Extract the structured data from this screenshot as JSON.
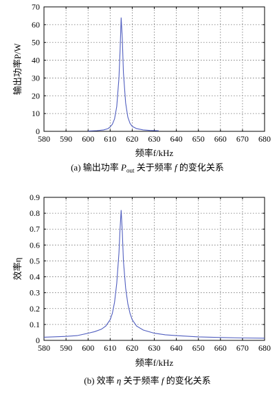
{
  "chart_data": [
    {
      "type": "line",
      "panel_label": "(a)",
      "caption": "输出功率 Pout 关于频率 f 的变化关系",
      "caption_parts": {
        "pre": "输出功率 ",
        "var": "P",
        "sub": "out",
        "post": " 关于频率 ",
        "var2": "f",
        "post2": " 的变化关系"
      },
      "xlabel": "频率f/kHz",
      "ylabel": "输出功率P/W",
      "xlim": [
        580,
        680
      ],
      "ylim": [
        0,
        70
      ],
      "xticks": [
        580,
        590,
        600,
        610,
        620,
        630,
        640,
        650,
        660,
        670,
        680
      ],
      "yticks": [
        0,
        10,
        20,
        30,
        40,
        50,
        60,
        70
      ],
      "grid": true,
      "color": "#4f5dbf",
      "series": [
        {
          "x": [
            600,
            604,
            607,
            609,
            610,
            611,
            612,
            613,
            614,
            614.5,
            615,
            615.5,
            616,
            617,
            618,
            619,
            620,
            622,
            625,
            628,
            632
          ],
          "y": [
            0.2,
            0.4,
            0.8,
            1.5,
            2.5,
            4,
            7,
            14,
            30,
            45,
            64,
            52,
            33,
            16,
            8,
            4.5,
            2.8,
            1.5,
            0.8,
            0.5,
            0.3
          ]
        }
      ]
    },
    {
      "type": "line",
      "panel_label": "(b)",
      "caption": "效率 η 关于频率 f 的变化关系",
      "caption_parts": {
        "pre": "效率 ",
        "var": "η",
        "sub": "",
        "post": " 关于频率 ",
        "var2": "f",
        "post2": " 的变化关系"
      },
      "xlabel": "频率f/kHz",
      "ylabel": "效率η",
      "xlim": [
        580,
        680
      ],
      "ylim": [
        0,
        0.9
      ],
      "xticks": [
        580,
        590,
        600,
        610,
        620,
        630,
        640,
        650,
        660,
        670,
        680
      ],
      "yticks": [
        0,
        0.1,
        0.2,
        0.3,
        0.4,
        0.5,
        0.6,
        0.7,
        0.8,
        0.9
      ],
      "grid": true,
      "color": "#4f5dbf",
      "series": [
        {
          "x": [
            580,
            590,
            595,
            600,
            603,
            606,
            608,
            610,
            611,
            612,
            613,
            614,
            614.5,
            615,
            615.5,
            616,
            617,
            618,
            619,
            620,
            622,
            625,
            630,
            635,
            640,
            650,
            660,
            670,
            680
          ],
          "y": [
            0.02,
            0.025,
            0.03,
            0.045,
            0.055,
            0.07,
            0.09,
            0.13,
            0.17,
            0.24,
            0.36,
            0.55,
            0.7,
            0.82,
            0.68,
            0.5,
            0.33,
            0.23,
            0.17,
            0.13,
            0.09,
            0.065,
            0.045,
            0.035,
            0.03,
            0.022,
            0.018,
            0.015,
            0.014
          ]
        }
      ]
    }
  ]
}
